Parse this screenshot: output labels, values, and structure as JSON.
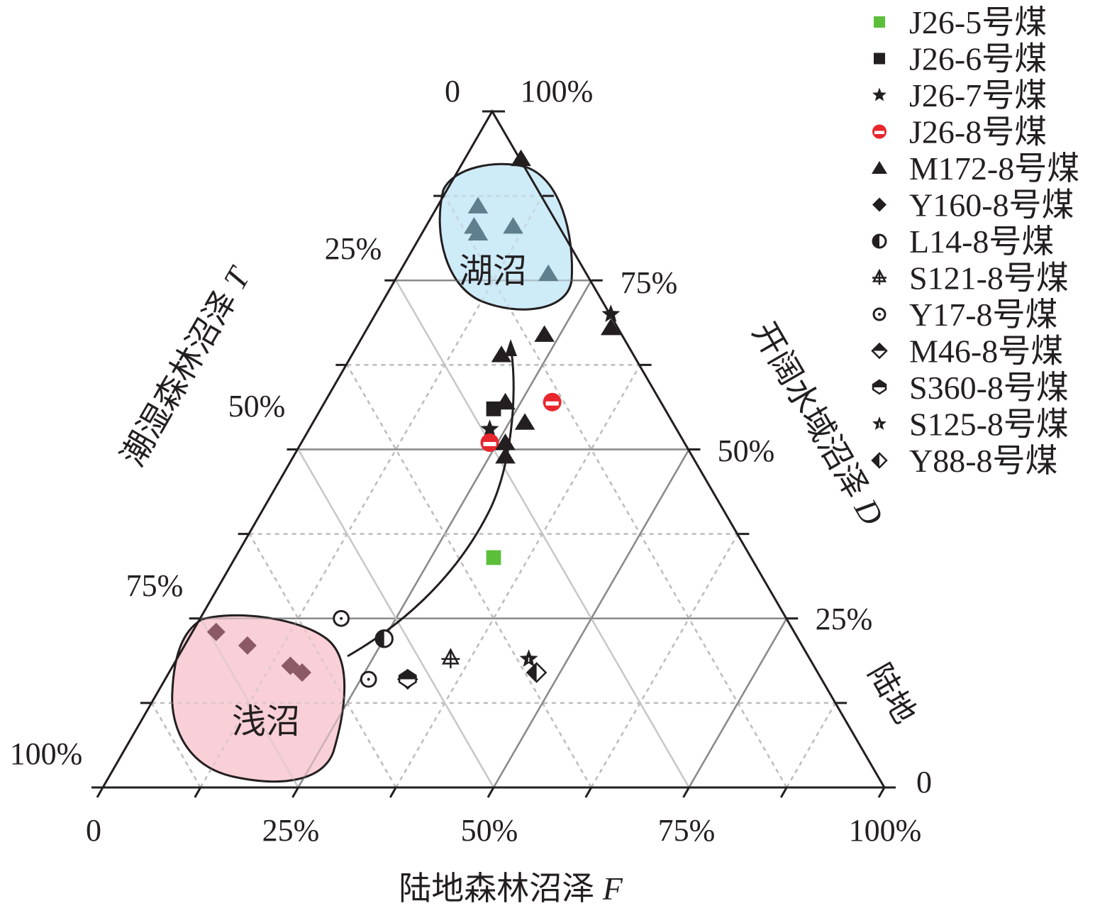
{
  "chart_data": {
    "type": "scatter",
    "subtype": "ternary",
    "axes": {
      "F": {
        "label": "陆地森林沼泽",
        "var": "F",
        "ticks": [
          "0",
          "25%",
          "50%",
          "75%",
          "100%"
        ]
      },
      "T": {
        "label": "潮湿森林沼泽",
        "var": "T",
        "ticks": [
          "0",
          "25%",
          "50%",
          "75%",
          "100%"
        ]
      },
      "D": {
        "label": "开阔水域沼泽",
        "var": "D",
        "ticks": [
          "0",
          "25%",
          "50%",
          "75%",
          "100%"
        ]
      }
    },
    "regions": [
      {
        "name": "湖沼",
        "color": "#c9e9f7"
      },
      {
        "name": "浅沼",
        "color": "#f8cbd3"
      }
    ],
    "corner_label": "陆地",
    "series": [
      {
        "name": "J26-5号煤",
        "marker": "square",
        "color": "#5cbf3a",
        "points": [
          [
            0.33,
            0.33,
            0.34
          ]
        ]
      },
      {
        "name": "J26-6号煤",
        "marker": "square",
        "color": "#231f20",
        "points": [
          [
            0.22,
            0.22,
            0.56
          ]
        ]
      },
      {
        "name": "J26-7号煤",
        "marker": "star",
        "color": "#231f20",
        "points": [
          [
            0.3,
            0.0,
            0.7
          ],
          [
            0.23,
            0.24,
            0.53
          ]
        ]
      },
      {
        "name": "J26-8号煤",
        "marker": "circle-band",
        "color": "#e8262d",
        "points": [
          [
            0.29,
            0.14,
            0.57
          ],
          [
            0.24,
            0.25,
            0.51
          ]
        ]
      },
      {
        "name": "M172-8号煤",
        "marker": "triangle",
        "color": "#231f20",
        "points": [
          [
            0.07,
            0.0,
            0.93
          ],
          [
            0.05,
            0.09,
            0.86
          ],
          [
            0.06,
            0.11,
            0.83
          ],
          [
            0.07,
            0.11,
            0.82
          ],
          [
            0.11,
            0.06,
            0.83
          ],
          [
            0.19,
            0.05,
            0.76
          ],
          [
            0.23,
            0.1,
            0.67
          ],
          [
            0.31,
            0.01,
            0.68
          ],
          [
            0.19,
            0.17,
            0.64
          ],
          [
            0.23,
            0.2,
            0.57
          ],
          [
            0.27,
            0.19,
            0.54
          ],
          [
            0.26,
            0.23,
            0.51
          ],
          [
            0.27,
            0.24,
            0.49
          ]
        ]
      },
      {
        "name": "Y160-8号煤",
        "marker": "diamond",
        "color": "#231f20",
        "points": [
          [
            0.03,
            0.74,
            0.23
          ],
          [
            0.08,
            0.71,
            0.21
          ],
          [
            0.15,
            0.67,
            0.18
          ],
          [
            0.17,
            0.66,
            0.17
          ]
        ]
      },
      {
        "name": "L14-8号煤",
        "marker": "circle-half",
        "color": "#231f20",
        "points": [
          [
            0.25,
            0.53,
            0.22
          ]
        ]
      },
      {
        "name": "S121-8号煤",
        "marker": "triangle-cross",
        "color": "#231f20",
        "points": [
          [
            0.35,
            0.46,
            0.19
          ]
        ]
      },
      {
        "name": "Y17-8号煤",
        "marker": "circle-dot",
        "color": "#231f20",
        "points": [
          [
            0.18,
            0.57,
            0.25
          ],
          [
            0.26,
            0.58,
            0.16
          ]
        ]
      },
      {
        "name": "M46-8号煤",
        "marker": "diamond-top",
        "color": "#231f20",
        "points": [
          [
            0.31,
            0.53,
            0.16
          ]
        ]
      },
      {
        "name": "S360-8号煤",
        "marker": "hexagon-top",
        "color": "#231f20",
        "points": [
          [
            0.31,
            0.53,
            0.16
          ]
        ]
      },
      {
        "name": "S125-8号煤",
        "marker": "star-open",
        "color": "#231f20",
        "points": [
          [
            0.45,
            0.36,
            0.19
          ]
        ]
      },
      {
        "name": "Y88-8号煤",
        "marker": "diamond-half",
        "color": "#231f20",
        "points": [
          [
            0.47,
            0.36,
            0.17
          ]
        ]
      }
    ],
    "point_order": "[F, T, D]",
    "legend_position": "top-right",
    "grid": true
  }
}
